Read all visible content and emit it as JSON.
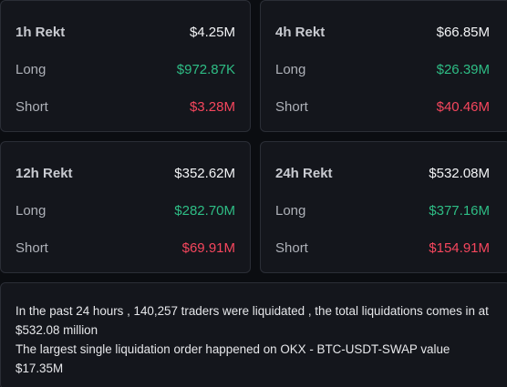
{
  "cards": [
    {
      "title": "1h Rekt",
      "total": "$4.25M",
      "long_label": "Long",
      "long_value": "$972.87K",
      "short_label": "Short",
      "short_value": "$3.28M"
    },
    {
      "title": "4h Rekt",
      "total": "$66.85M",
      "long_label": "Long",
      "long_value": "$26.39M",
      "short_label": "Short",
      "short_value": "$40.46M"
    },
    {
      "title": "12h Rekt",
      "total": "$352.62M",
      "long_label": "Long",
      "long_value": "$282.70M",
      "short_label": "Short",
      "short_value": "$69.91M"
    },
    {
      "title": "24h Rekt",
      "total": "$532.08M",
      "long_label": "Long",
      "long_value": "$377.16M",
      "short_label": "Short",
      "short_value": "$154.91M"
    }
  ],
  "summary": {
    "line1": "In the past 24 hours , 140,257 traders were liquidated , the total liquidations comes in at $532.08 million",
    "line2": "The largest single liquidation order happened on OKX - BTC-USDT-SWAP value $17.35M"
  },
  "colors": {
    "long": "#2ebd85",
    "short": "#f6465d",
    "card_bg": "#14161c",
    "border": "#2b2e36"
  }
}
